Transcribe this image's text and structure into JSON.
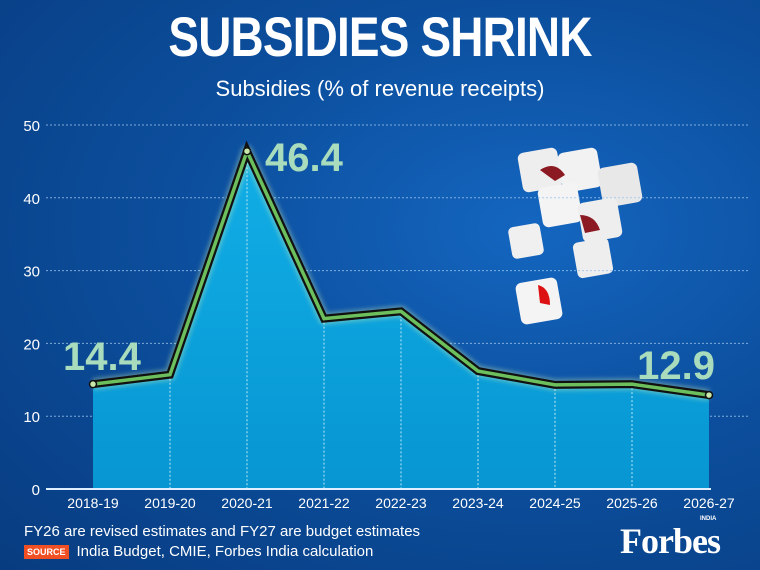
{
  "chart_data": {
    "type": "area",
    "title": "SUBSIDIES SHRINK",
    "subtitle": "Subsidies (% of revenue receipts)",
    "categories": [
      "2018-19",
      "2019-20",
      "2020-21",
      "2021-22",
      "2022-23",
      "2023-24",
      "2024-25",
      "2025-26",
      "2026-27"
    ],
    "values": [
      14.4,
      15.7,
      46.4,
      23.4,
      24.4,
      16.2,
      14.3,
      14.4,
      12.9
    ],
    "data_labels": {
      "0": "14.4",
      "2": "46.4",
      "8": "12.9"
    },
    "ylim": [
      0,
      50
    ],
    "yticks": [
      "0",
      "10",
      "20",
      "30",
      "40",
      "50"
    ],
    "grid": true,
    "colors": {
      "fill": "#0aa0dc",
      "line_outer": "#111111",
      "line_inner": "#6cbf5c",
      "label": "#a8dcbc"
    }
  },
  "footer": {
    "note": "FY26 are revised estimates and FY27 are budget estimates",
    "source_badge": "SOURCE",
    "source": "India Budget, CMIE, Forbes India calculation",
    "logo": "Forbes",
    "logo_tag": "INDIA"
  }
}
